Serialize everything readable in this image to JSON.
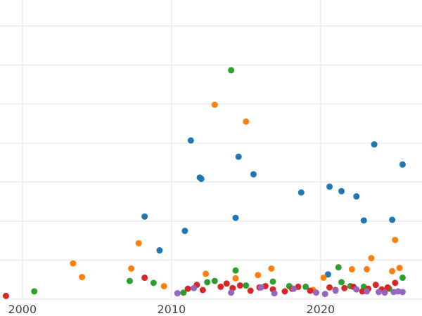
{
  "chart_data": {
    "type": "scatter",
    "title": "",
    "xlabel": "",
    "ylabel": "",
    "grid": true,
    "legend": "none",
    "xlim": [
      1998.5,
      2026.8
    ],
    "ylim": [
      0,
      46
    ],
    "xticks": [
      2000,
      2010,
      2020
    ],
    "xtick_labels": [
      "2000",
      "2010",
      "2020"
    ],
    "yticks": [
      0,
      6,
      12,
      18,
      24,
      30,
      36,
      42
    ],
    "series": [
      {
        "color": "#1f77b4",
        "x": [
          2008.2,
          2009.2,
          2010.9,
          2011.3,
          2011.9,
          2012.0,
          2014.3,
          2014.5,
          2015.5,
          2018.7,
          2020.5,
          2020.6,
          2021.4,
          2022.4,
          2022.9,
          2023.6,
          2024.8,
          2025.5
        ],
        "y": [
          12.7,
          7.5,
          10.5,
          24.4,
          18.7,
          18.5,
          12.5,
          21.9,
          19.2,
          16.4,
          3.8,
          17.3,
          16.6,
          15.8,
          12.1,
          23.8,
          12.2,
          20.7
        ]
      },
      {
        "color": "#ff7f0e",
        "x": [
          2003.4,
          2004.0,
          2007.3,
          2007.8,
          2009.5,
          2012.3,
          2012.9,
          2014.3,
          2015.0,
          2015.8,
          2016.7,
          2019.5,
          2020.2,
          2022.1,
          2023.1,
          2023.4,
          2024.8,
          2025.0,
          2025.3
        ],
        "y": [
          5.5,
          3.4,
          4.7,
          8.6,
          2.0,
          3.9,
          29.9,
          3.2,
          27.3,
          3.7,
          4.7,
          1.4,
          3.3,
          4.6,
          4.6,
          6.3,
          4.3,
          9.1,
          4.8
        ]
      },
      {
        "color": "#2ca02c",
        "x": [
          2000.8,
          2007.2,
          2008.8,
          2010.8,
          2012.4,
          2012.9,
          2014.0,
          2014.3,
          2015.0,
          2016.8,
          2017.9,
          2019.0,
          2021.2,
          2021.4,
          2022.0,
          2022.9,
          2024.6,
          2025.5
        ],
        "y": [
          1.2,
          2.8,
          2.5,
          1.0,
          2.6,
          2.8,
          35.2,
          4.4,
          2.1,
          2.7,
          2.0,
          1.9,
          4.9,
          2.6,
          2.0,
          1.9,
          1.6,
          3.3
        ]
      },
      {
        "color": "#d62728",
        "x": [
          1998.9,
          2008.2,
          2011.1,
          2011.7,
          2012.1,
          2013.3,
          2013.7,
          2014.1,
          2014.6,
          2015.3,
          2015.9,
          2016.3,
          2016.8,
          2017.6,
          2018.1,
          2018.5,
          2019.3,
          2020.6,
          2021.0,
          2021.6,
          2022.2,
          2022.8,
          2023.2,
          2023.7,
          2024.1,
          2024.5,
          2025.0
        ],
        "y": [
          0.5,
          3.3,
          1.6,
          2.2,
          1.4,
          1.9,
          2.4,
          1.7,
          2.1,
          1.3,
          1.8,
          2.0,
          1.5,
          1.2,
          1.6,
          1.9,
          1.3,
          1.8,
          1.4,
          1.7,
          1.9,
          1.2,
          1.6,
          2.2,
          1.5,
          1.8,
          2.5
        ]
      },
      {
        "color": "#9467bd",
        "x": [
          2010.4,
          2011.5,
          2014.0,
          2016.0,
          2016.9,
          2018.2,
          2019.7,
          2020.3,
          2021.0,
          2022.4,
          2023.1,
          2023.9,
          2024.3,
          2024.9,
          2025.2,
          2025.5
        ],
        "y": [
          0.9,
          1.7,
          1.0,
          1.8,
          0.9,
          1.6,
          1.0,
          0.8,
          1.3,
          1.5,
          1.2,
          1.1,
          1.0,
          1.1,
          1.2,
          1.1
        ]
      }
    ]
  }
}
